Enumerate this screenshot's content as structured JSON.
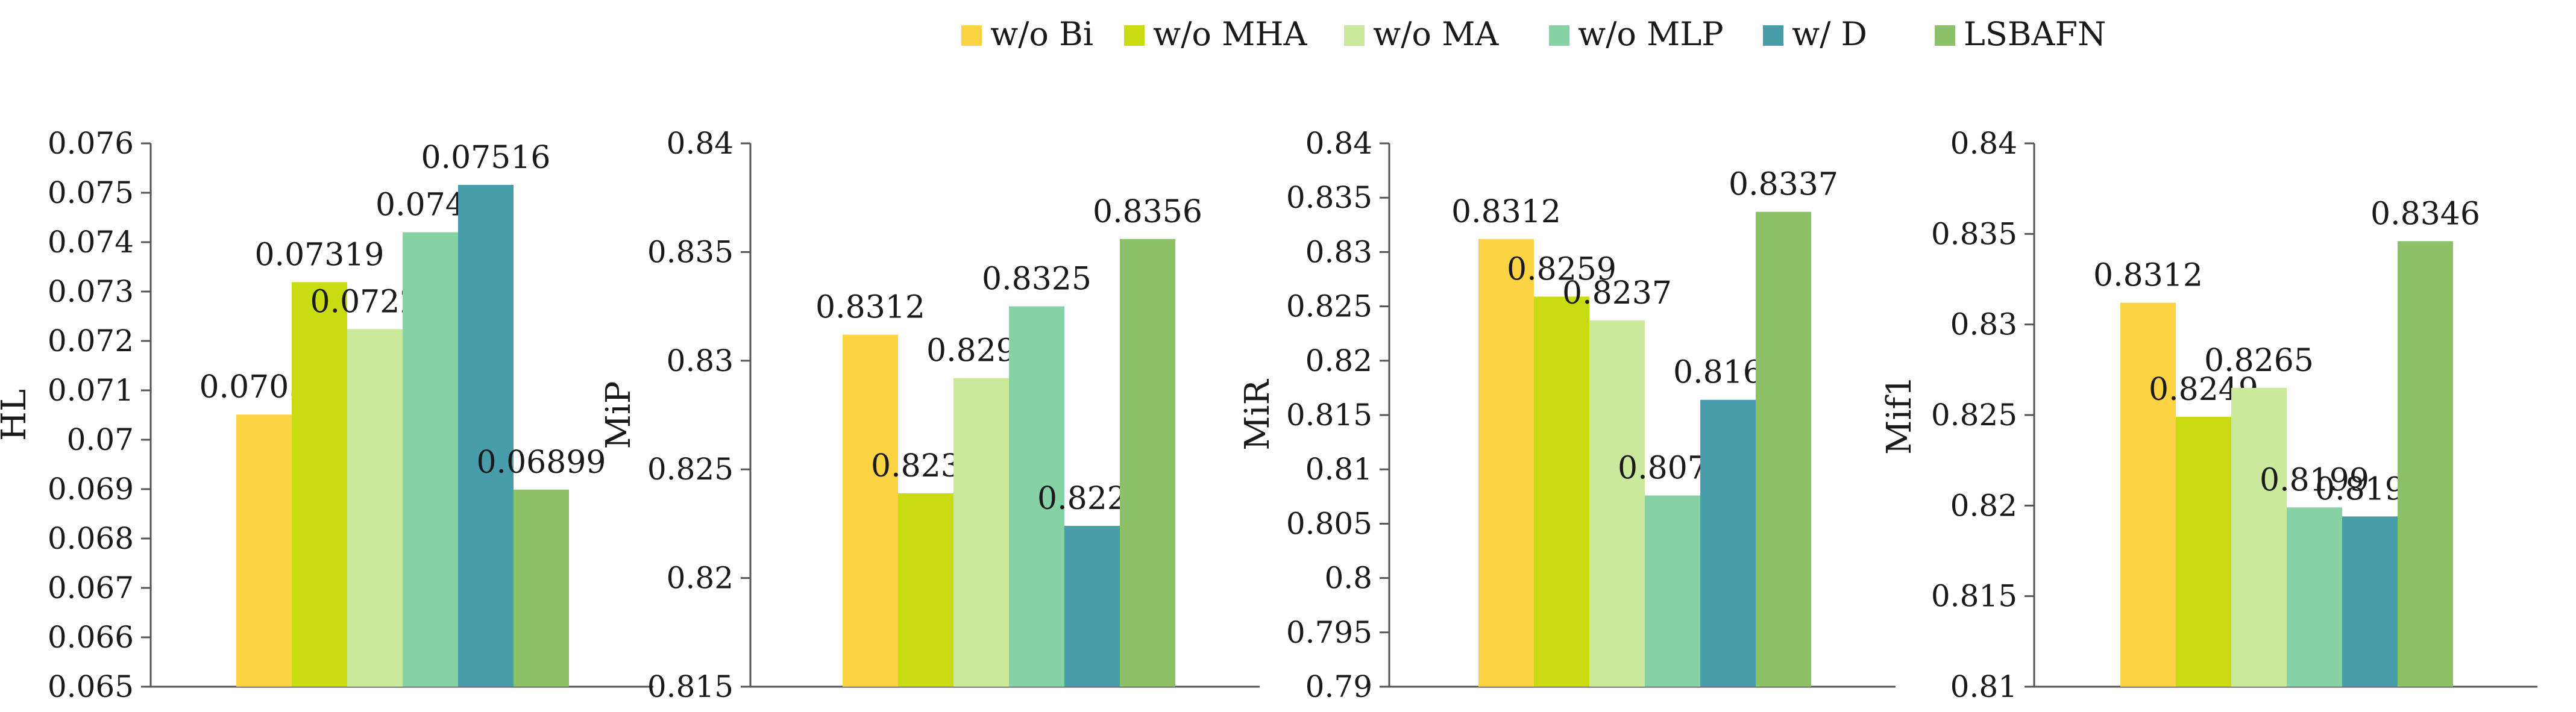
{
  "legend": {
    "placement": "top-center",
    "items": [
      {
        "label": "w/o Bi",
        "color": "#FCD342"
      },
      {
        "label": "w/o MHA",
        "color": "#C9DC11"
      },
      {
        "label": "w/o MA",
        "color": "#CAE99D"
      },
      {
        "label": "w/o MLP",
        "color": "#86D2A5"
      },
      {
        "label": "w/ D",
        "color": "#479DAA"
      },
      {
        "label": "LSBAFN",
        "color": "#8CC169"
      }
    ]
  },
  "chart_data": [
    {
      "type": "bar",
      "title": "",
      "xlabel": "",
      "ylabel": "HL",
      "ylim": [
        0.065,
        0.076
      ],
      "yticks": [
        "0.065",
        "0.066",
        "0.067",
        "0.068",
        "0.069",
        "0.07",
        "0.071",
        "0.072",
        "0.073",
        "0.074",
        "0.075",
        "0.076"
      ],
      "grid": false,
      "series": [
        {
          "name": "w/o Bi",
          "values": [
            0.07051
          ],
          "label": "0.07051"
        },
        {
          "name": "w/o MHA",
          "values": [
            0.07319
          ],
          "label": "0.07319"
        },
        {
          "name": "w/o MA",
          "values": [
            0.07224
          ],
          "label": "0.07224"
        },
        {
          "name": "w/o MLP",
          "values": [
            0.0742
          ],
          "label": "0.0742"
        },
        {
          "name": "w/ D",
          "values": [
            0.07516
          ],
          "label": "0.07516"
        },
        {
          "name": "LSBAFN",
          "values": [
            0.06899
          ],
          "label": "0.06899"
        }
      ]
    },
    {
      "type": "bar",
      "title": "",
      "xlabel": "",
      "ylabel": "MiP",
      "ylim": [
        0.815,
        0.84
      ],
      "yticks": [
        "0.815",
        "0.82",
        "0.825",
        "0.83",
        "0.835",
        "0.84"
      ],
      "grid": false,
      "series": [
        {
          "name": "w/o Bi",
          "values": [
            0.8312
          ],
          "label": "0.8312"
        },
        {
          "name": "w/o MHA",
          "values": [
            0.8239
          ],
          "label": "0.8239"
        },
        {
          "name": "w/o MA",
          "values": [
            0.8292
          ],
          "label": "0.8292"
        },
        {
          "name": "w/o MLP",
          "values": [
            0.8325
          ],
          "label": "0.8325"
        },
        {
          "name": "w/ D",
          "values": [
            0.8224
          ],
          "label": "0.8224"
        },
        {
          "name": "LSBAFN",
          "values": [
            0.8356
          ],
          "label": "0.8356"
        }
      ]
    },
    {
      "type": "bar",
      "title": "",
      "xlabel": "",
      "ylabel": "MiR",
      "ylim": [
        0.79,
        0.84
      ],
      "yticks": [
        "0.79",
        "0.795",
        "0.8",
        "0.805",
        "0.81",
        "0.815",
        "0.82",
        "0.825",
        "0.83",
        "0.835",
        "0.84"
      ],
      "grid": false,
      "series": [
        {
          "name": "w/o Bi",
          "values": [
            0.8312
          ],
          "label": "0.8312"
        },
        {
          "name": "w/o MHA",
          "values": [
            0.8259
          ],
          "label": "0.8259"
        },
        {
          "name": "w/o MA",
          "values": [
            0.8237
          ],
          "label": "0.8237"
        },
        {
          "name": "w/o MLP",
          "values": [
            0.8076
          ],
          "label": "0.8076"
        },
        {
          "name": "w/ D",
          "values": [
            0.8164
          ],
          "label": "0.8164"
        },
        {
          "name": "LSBAFN",
          "values": [
            0.8337
          ],
          "label": "0.8337"
        }
      ]
    },
    {
      "type": "bar",
      "title": "",
      "xlabel": "",
      "ylabel": "Mif1",
      "ylim": [
        0.81,
        0.84
      ],
      "yticks": [
        "0.81",
        "0.815",
        "0.82",
        "0.825",
        "0.83",
        "0.835",
        "0.84"
      ],
      "grid": false,
      "series": [
        {
          "name": "w/o Bi",
          "values": [
            0.8312
          ],
          "label": "0.8312"
        },
        {
          "name": "w/o MHA",
          "values": [
            0.8249
          ],
          "label": "0.8249"
        },
        {
          "name": "w/o MA",
          "values": [
            0.8265
          ],
          "label": "0.8265"
        },
        {
          "name": "w/o MLP",
          "values": [
            0.8199
          ],
          "label": "0.8199"
        },
        {
          "name": "w/ D",
          "values": [
            0.8194
          ],
          "label": "0.8194"
        },
        {
          "name": "LSBAFN",
          "values": [
            0.8346
          ],
          "label": "0.8346"
        }
      ]
    }
  ]
}
